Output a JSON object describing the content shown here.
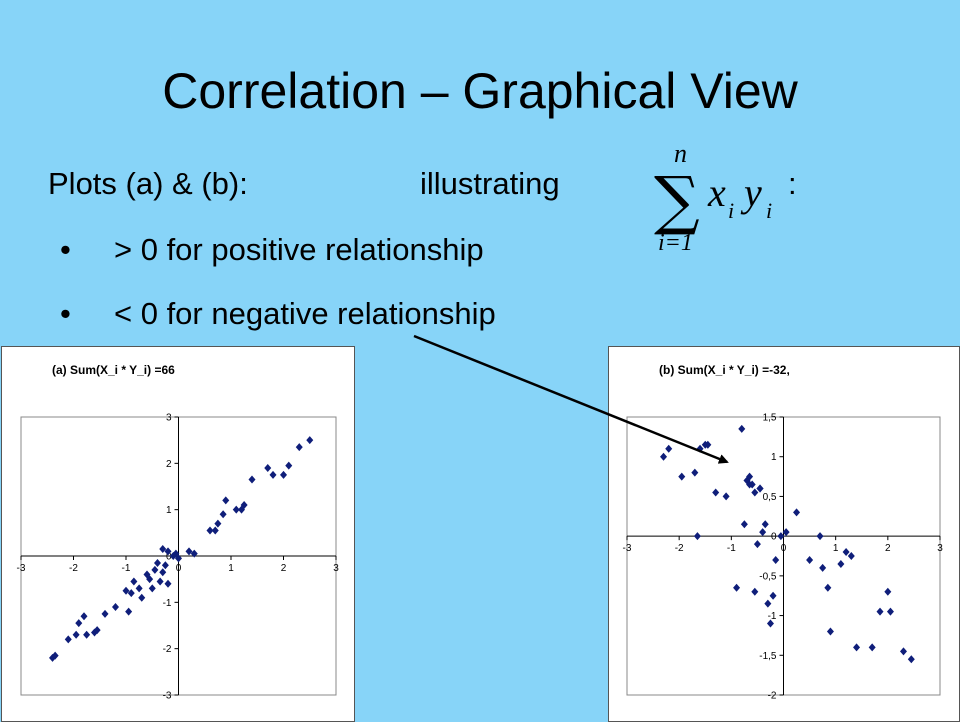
{
  "slide": {
    "title": "Correlation – Graphical View",
    "plots_label": "Plots (a) & (b):",
    "illustrating": "illustrating",
    "colon": ":",
    "bullets": [
      {
        "dot": "•",
        "text": "> 0  for positive relationship"
      },
      {
        "dot": "•",
        "text": "< 0  for negative relationship"
      }
    ],
    "formula": {
      "sum_top": "n",
      "sum_bottom": "i=1",
      "term_x": "x",
      "term_y": "y",
      "sub_i": "i"
    }
  },
  "chart_data": [
    {
      "type": "scatter",
      "title": "(a)  Sum(X_i * Y_i) =66",
      "xlim": [
        -3,
        3
      ],
      "ylim": [
        -3,
        3
      ],
      "xticks": [
        "-3",
        "-2",
        "-1",
        "0",
        "1",
        "2",
        "3"
      ],
      "yticks": [
        "-3",
        "-2",
        "-1",
        "0",
        "1",
        "2",
        "3"
      ],
      "color": "#0f1e7a",
      "points": [
        [
          -2.4,
          -2.2
        ],
        [
          -2.35,
          -2.15
        ],
        [
          -2.1,
          -1.8
        ],
        [
          -1.95,
          -1.7
        ],
        [
          -1.9,
          -1.45
        ],
        [
          -1.8,
          -1.3
        ],
        [
          -1.75,
          -1.7
        ],
        [
          -1.6,
          -1.65
        ],
        [
          -1.55,
          -1.6
        ],
        [
          -1.4,
          -1.25
        ],
        [
          -1.2,
          -1.1
        ],
        [
          -1.0,
          -0.75
        ],
        [
          -0.95,
          -1.2
        ],
        [
          -0.9,
          -0.8
        ],
        [
          -0.85,
          -0.55
        ],
        [
          -0.75,
          -0.7
        ],
        [
          -0.7,
          -0.9
        ],
        [
          -0.6,
          -0.4
        ],
        [
          -0.55,
          -0.5
        ],
        [
          -0.5,
          -0.7
        ],
        [
          -0.45,
          -0.3
        ],
        [
          -0.4,
          -0.15
        ],
        [
          -0.35,
          -0.55
        ],
        [
          -0.3,
          -0.35
        ],
        [
          -0.25,
          -0.2
        ],
        [
          -0.2,
          -0.6
        ],
        [
          -0.3,
          0.15
        ],
        [
          -0.2,
          0.1
        ],
        [
          -0.1,
          0.0
        ],
        [
          -0.05,
          0.05
        ],
        [
          0.0,
          -0.05
        ],
        [
          0.2,
          0.1
        ],
        [
          0.3,
          0.05
        ],
        [
          0.6,
          0.55
        ],
        [
          0.7,
          0.55
        ],
        [
          0.75,
          0.7
        ],
        [
          0.85,
          0.9
        ],
        [
          0.9,
          1.2
        ],
        [
          1.1,
          1.0
        ],
        [
          1.2,
          1.0
        ],
        [
          1.25,
          1.1
        ],
        [
          1.4,
          1.65
        ],
        [
          1.7,
          1.9
        ],
        [
          1.8,
          1.75
        ],
        [
          2.0,
          1.75
        ],
        [
          2.1,
          1.95
        ],
        [
          2.3,
          2.35
        ],
        [
          2.5,
          2.5
        ]
      ]
    },
    {
      "type": "scatter",
      "title": "(b)  Sum(X_i * Y_i) =-32,",
      "xlim": [
        -3,
        3
      ],
      "ylim": [
        -2,
        1.5
      ],
      "xticks": [
        "-3",
        "-2",
        "-1",
        "0",
        "1",
        "2",
        "3"
      ],
      "yticks": [
        "-2",
        "-1,5",
        "-1",
        "-0,5",
        "0",
        "0,5",
        "1",
        "1,5"
      ],
      "color": "#0f1e7a",
      "points": [
        [
          -2.3,
          1.0
        ],
        [
          -2.2,
          1.1
        ],
        [
          -1.95,
          0.75
        ],
        [
          -1.7,
          0.8
        ],
        [
          -1.6,
          1.1
        ],
        [
          -1.5,
          1.15
        ],
        [
          -1.45,
          1.15
        ],
        [
          -1.3,
          0.55
        ],
        [
          -1.1,
          0.5
        ],
        [
          -0.9,
          -0.65
        ],
        [
          -0.8,
          1.35
        ],
        [
          -0.75,
          0.15
        ],
        [
          -0.7,
          0.7
        ],
        [
          -0.65,
          0.75
        ],
        [
          -0.6,
          0.65
        ],
        [
          -0.55,
          0.55
        ],
        [
          -0.5,
          -0.1
        ],
        [
          -0.45,
          0.6
        ],
        [
          -0.4,
          0.05
        ],
        [
          -0.35,
          0.15
        ],
        [
          -0.3,
          -0.85
        ],
        [
          -0.25,
          -1.1
        ],
        [
          -0.2,
          -0.75
        ],
        [
          -0.15,
          -0.3
        ],
        [
          -1.65,
          0.0
        ],
        [
          -0.65,
          0.65
        ],
        [
          -0.55,
          -0.7
        ],
        [
          -0.45,
          0.6
        ],
        [
          -0.05,
          0.0
        ],
        [
          0.05,
          0.05
        ],
        [
          0.25,
          0.3
        ],
        [
          0.5,
          -0.3
        ],
        [
          0.7,
          0.0
        ],
        [
          0.75,
          -0.4
        ],
        [
          0.85,
          -0.65
        ],
        [
          0.9,
          -1.2
        ],
        [
          1.1,
          -0.35
        ],
        [
          1.2,
          -0.2
        ],
        [
          1.3,
          -0.25
        ],
        [
          1.4,
          -1.4
        ],
        [
          1.7,
          -1.4
        ],
        [
          1.85,
          -0.95
        ],
        [
          2.0,
          -0.7
        ],
        [
          2.05,
          -0.95
        ],
        [
          2.3,
          -1.45
        ],
        [
          2.45,
          -1.55
        ]
      ]
    }
  ]
}
